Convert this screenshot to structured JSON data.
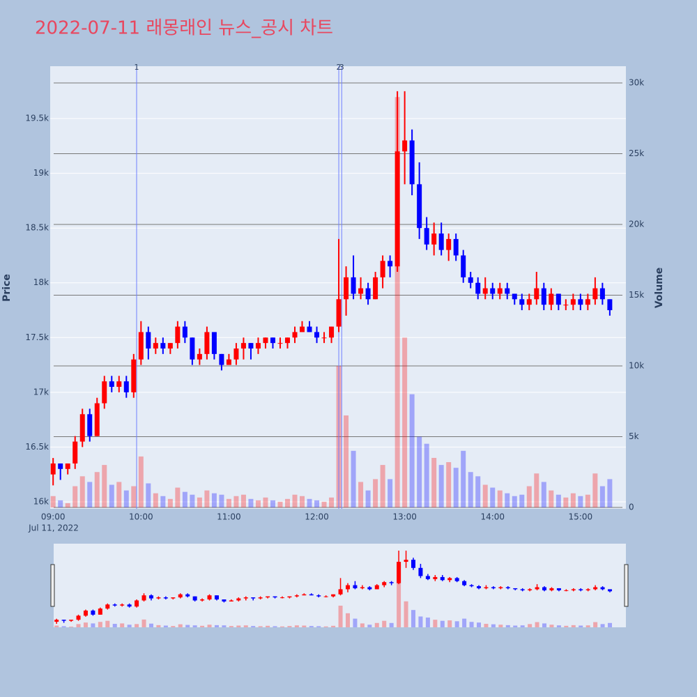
{
  "chart_data": {
    "type": "candlestick",
    "title": "2022-07-11 래몽래인 뉴스_공시 차트",
    "y_title": "Price",
    "y2_title": "Volume",
    "x_date_label": "Jul 11, 2022",
    "increasing_color": "#ff0000",
    "decreasing_color": "#0000ff",
    "event_color": "#6f7fff",
    "xlim": [
      "08:58",
      "15:31"
    ],
    "xticks": [
      "09:00",
      "10:00",
      "11:00",
      "12:00",
      "13:00",
      "14:00",
      "15:00"
    ],
    "ylim": [
      15936,
      19978
    ],
    "yticks": [
      {
        "value": 16000,
        "label": "16k"
      },
      {
        "value": 16500,
        "label": "16.5k"
      },
      {
        "value": 17000,
        "label": "17k"
      },
      {
        "value": 17500,
        "label": "17.5k"
      },
      {
        "value": 18000,
        "label": "18k"
      },
      {
        "value": 18500,
        "label": "18.5k"
      },
      {
        "value": 19000,
        "label": "19k"
      },
      {
        "value": 19500,
        "label": "19.5k"
      }
    ],
    "y2lim": [
      -98,
      31180
    ],
    "y2ticks": [
      0,
      {
        "value": 5000,
        "label": "5k"
      },
      {
        "value": 10000,
        "label": "10k"
      },
      {
        "value": 15000,
        "label": "15k"
      },
      {
        "value": 20000,
        "label": "20k"
      },
      {
        "value": 25000,
        "label": "25k"
      },
      {
        "value": 30000,
        "label": "30k"
      }
    ],
    "events": [
      {
        "x": "09:57",
        "label": "1"
      },
      {
        "x": "12:15",
        "label": "2"
      },
      {
        "x": "12:17",
        "label": "3"
      }
    ],
    "x": [
      "09:00",
      "09:05",
      "09:10",
      "09:15",
      "09:20",
      "09:25",
      "09:30",
      "09:35",
      "09:40",
      "09:45",
      "09:50",
      "09:55",
      "10:00",
      "10:05",
      "10:10",
      "10:15",
      "10:20",
      "10:25",
      "10:30",
      "10:35",
      "10:40",
      "10:45",
      "10:50",
      "10:55",
      "11:00",
      "11:05",
      "11:10",
      "11:15",
      "11:20",
      "11:25",
      "11:30",
      "11:35",
      "11:40",
      "11:45",
      "11:50",
      "11:55",
      "12:00",
      "12:05",
      "12:10",
      "12:15",
      "12:20",
      "12:25",
      "12:30",
      "12:35",
      "12:40",
      "12:45",
      "12:50",
      "12:55",
      "13:00",
      "13:05",
      "13:10",
      "13:15",
      "13:20",
      "13:25",
      "13:30",
      "13:35",
      "13:40",
      "13:45",
      "13:50",
      "13:55",
      "14:00",
      "14:05",
      "14:10",
      "14:15",
      "14:20",
      "14:25",
      "14:30",
      "14:35",
      "14:40",
      "14:45",
      "14:50",
      "14:55",
      "15:00",
      "15:05",
      "15:10",
      "15:15",
      "15:20"
    ],
    "open": [
      16250,
      16350,
      16300,
      16350,
      16550,
      16800,
      16600,
      16900,
      17100,
      17050,
      17100,
      17000,
      17300,
      17550,
      17400,
      17450,
      17400,
      17450,
      17600,
      17500,
      17300,
      17350,
      17550,
      17350,
      17250,
      17300,
      17400,
      17450,
      17400,
      17450,
      17500,
      17450,
      17450,
      17500,
      17550,
      17600,
      17550,
      17500,
      17500,
      17600,
      17850,
      18050,
      17900,
      17950,
      17850,
      18050,
      18200,
      18150,
      19200,
      19300,
      18900,
      18500,
      18350,
      18450,
      18300,
      18400,
      18250,
      18050,
      18000,
      17900,
      17950,
      17900,
      17950,
      17900,
      17850,
      17800,
      17850,
      17950,
      17800,
      17900,
      17800,
      17800,
      17850,
      17800,
      17850,
      17950,
      17850
    ],
    "high": [
      16400,
      16350,
      16350,
      16600,
      16850,
      16850,
      16950,
      17150,
      17150,
      17150,
      17150,
      17350,
      17650,
      17600,
      17500,
      17500,
      17450,
      17650,
      17650,
      17500,
      17400,
      17600,
      17550,
      17350,
      17350,
      17450,
      17500,
      17450,
      17500,
      17500,
      17500,
      17500,
      17500,
      17600,
      17650,
      17650,
      17600,
      17550,
      17600,
      18400,
      18150,
      18250,
      18050,
      18000,
      18100,
      18250,
      18250,
      19750,
      19750,
      19400,
      19100,
      18600,
      18550,
      18550,
      18450,
      18450,
      18300,
      18100,
      18050,
      18050,
      18000,
      18000,
      18000,
      17900,
      17900,
      17900,
      18100,
      18000,
      17950,
      17900,
      17850,
      17900,
      17900,
      17900,
      18050,
      18000,
      17850
    ],
    "low": [
      16150,
      16200,
      16250,
      16300,
      16500,
      16550,
      16600,
      16850,
      17000,
      17000,
      16950,
      16950,
      17250,
      17300,
      17350,
      17350,
      17350,
      17400,
      17450,
      17250,
      17250,
      17300,
      17300,
      17200,
      17250,
      17250,
      17300,
      17300,
      17350,
      17400,
      17400,
      17400,
      17400,
      17450,
      17550,
      17550,
      17450,
      17450,
      17450,
      17550,
      17700,
      17850,
      17850,
      17800,
      17850,
      17950,
      18050,
      18100,
      18900,
      18800,
      18400,
      18300,
      18250,
      18250,
      18200,
      18200,
      18000,
      17950,
      17850,
      17850,
      17850,
      17850,
      17850,
      17800,
      17750,
      17750,
      17800,
      17750,
      17750,
      17750,
      17750,
      17750,
      17750,
      17750,
      17800,
      17800,
      17700
    ],
    "close": [
      16350,
      16300,
      16350,
      16550,
      16800,
      16600,
      16900,
      17100,
      17050,
      17100,
      17000,
      17300,
      17550,
      17400,
      17450,
      17400,
      17450,
      17600,
      17500,
      17300,
      17350,
      17550,
      17350,
      17250,
      17300,
      17400,
      17450,
      17400,
      17450,
      17500,
      17450,
      17450,
      17500,
      17550,
      17600,
      17550,
      17500,
      17500,
      17600,
      17850,
      18050,
      17900,
      17950,
      17850,
      18050,
      18200,
      18150,
      19200,
      19300,
      18900,
      18500,
      18350,
      18450,
      18300,
      18400,
      18250,
      18050,
      18000,
      17900,
      17950,
      17900,
      17950,
      17900,
      17850,
      17800,
      17850,
      17950,
      17800,
      17900,
      17800,
      17800,
      17850,
      17800,
      17850,
      17950,
      17850,
      17750
    ],
    "volume": [
      800,
      500,
      300,
      1500,
      2200,
      1800,
      2500,
      3000,
      1600,
      1800,
      1200,
      1500,
      3600,
      1700,
      1000,
      800,
      600,
      1400,
      1100,
      900,
      700,
      1200,
      1000,
      900,
      600,
      800,
      900,
      600,
      500,
      700,
      500,
      400,
      600,
      900,
      800,
      600,
      500,
      400,
      700,
      10000,
      6500,
      4000,
      1800,
      1200,
      2000,
      3000,
      2000,
      29000,
      12000,
      8000,
      5000,
      4500,
      3500,
      3000,
      3200,
      2800,
      4000,
      2500,
      2200,
      1600,
      1400,
      1200,
      1000,
      800,
      900,
      1500,
      2400,
      1800,
      1200,
      900,
      700,
      1000,
      800,
      900,
      2400,
      1500,
      2000
    ]
  }
}
